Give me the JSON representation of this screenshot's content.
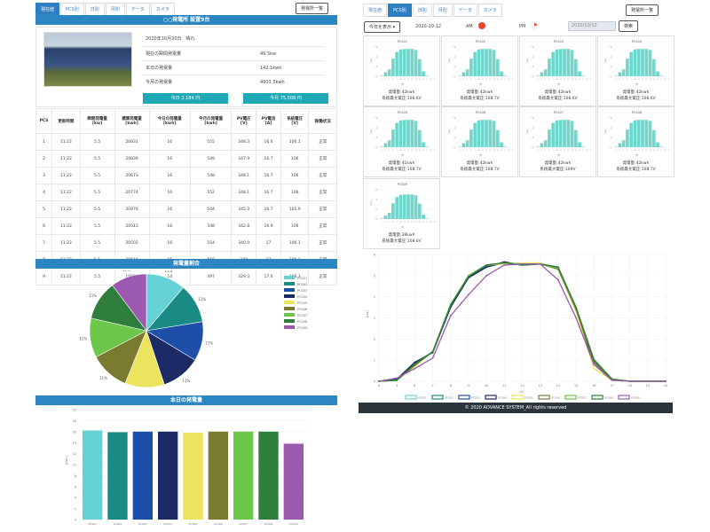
{
  "nav": {
    "tabs": [
      "現在値",
      "PCS別",
      "日別",
      "月別",
      "データ",
      "カメラ"
    ],
    "plant_list_button": "発電所一覧"
  },
  "left": {
    "title": "○○発電所 設置9台",
    "info": {
      "date_weather": "2020年10月20日　晴れ",
      "rows": [
        {
          "label": "現在の瞬間発電量",
          "value": "49.5kw"
        },
        {
          "label": "本日の発電量",
          "value": "142.1kwh"
        },
        {
          "label": "今月の発電量",
          "value": "4903.5kwh"
        }
      ],
      "today_button": "今日 2,184 円",
      "month_button": "今月 75,508 円"
    },
    "table": {
      "headers": [
        "PCS",
        "更新時間",
        "瞬間発電量\n[kw]",
        "積算発電量\n[kwh]",
        "今日の発電量\n[kwh]",
        "今月の発電量\n[kwh]",
        "PV電圧\n[V]",
        "PV電流\n[A]",
        "系統電圧\n[V]",
        "稼働状況"
      ],
      "rows": [
        [
          "1",
          "11:22",
          "5.5",
          "20831",
          "16",
          "555",
          "348.3",
          "16.6",
          "106.1",
          "正常"
        ],
        [
          "2",
          "11:22",
          "5.5",
          "20839",
          "16",
          "549",
          "347.9",
          "16.7",
          "106",
          "正常"
        ],
        [
          "3",
          "11:22",
          "5.5",
          "20673",
          "16",
          "548",
          "348.1",
          "16.7",
          "106",
          "正常"
        ],
        [
          "4",
          "11:22",
          "5.5",
          "20774",
          "16",
          "552",
          "348.1",
          "16.7",
          "106",
          "正常"
        ],
        [
          "5",
          "11:22",
          "5.5",
          "20876",
          "16",
          "544",
          "345.3",
          "16.7",
          "105.9",
          "正常"
        ],
        [
          "6",
          "11:22",
          "5.5",
          "20513",
          "16",
          "548",
          "342.8",
          "16.9",
          "106",
          "正常"
        ],
        [
          "7",
          "11:22",
          "5.5",
          "20502",
          "16",
          "554",
          "340.9",
          "17",
          "106.1",
          "正常"
        ],
        [
          "8",
          "11:22",
          "5.5",
          "20644",
          "16",
          "556",
          "340",
          "17",
          "106.1",
          "正常"
        ],
        [
          "9",
          "11:22",
          "5.5",
          "19811",
          "14",
          "497",
          "329.3",
          "17.6",
          "106.3",
          "正常"
        ]
      ]
    },
    "pie_title": "発電量割合",
    "bar_title": "本日の発電量"
  },
  "right": {
    "today_select": "今日を表示 ▾",
    "date_label": "2020-10-12",
    "am_label": "AM",
    "pm_label": "PM",
    "date_input": "2020/10/12",
    "search_button": "検索",
    "footer": "© 2020 ADVANCE SYSTEM_All rights reserved"
  },
  "colors": [
    "#66d1d6",
    "#1a8a84",
    "#1d4fa8",
    "#1c2a66",
    "#ece35e",
    "#7a7b31",
    "#6cc64a",
    "#2e7d3a",
    "#9b59b0"
  ],
  "chart_data": [
    {
      "type": "pie",
      "title": "発電量割合",
      "labels": [
        "PCS01",
        "PCS02",
        "PCS03",
        "PCS04",
        "PCS05",
        "PCS06",
        "PCS07",
        "PCS08",
        "PCS09"
      ],
      "values": [
        11,
        11,
        11,
        11,
        11,
        11,
        11,
        11,
        10
      ],
      "legend": "right"
    },
    {
      "type": "bar",
      "title": "本日の発電量",
      "categories": [
        "PCS01",
        "PCS02",
        "PCS03",
        "PCS04",
        "PCS05",
        "PCS06",
        "PCS07",
        "PCS08",
        "PCS09"
      ],
      "values": [
        16.2,
        15.9,
        16,
        16,
        15.8,
        16,
        16,
        16,
        13.8
      ],
      "ylabel": "[kwh]",
      "ylim": [
        0,
        20
      ],
      "yticks": [
        0,
        2,
        4,
        6,
        8,
        10,
        12,
        14,
        16,
        18,
        20
      ]
    },
    {
      "type": "bar",
      "title": "PCS small multiples",
      "xlabel": "[h]",
      "ylabel": "[kw]",
      "ylim": [
        0,
        6
      ],
      "yticks": [
        0,
        2,
        4,
        6
      ],
      "x": [
        5,
        6,
        7,
        8,
        9,
        10,
        11,
        12,
        13,
        14,
        15,
        16,
        17,
        18,
        19
      ],
      "cards": [
        {
          "name": "PCS01",
          "gen": "発電量:42kwh",
          "volt": "系統最大電圧:108.6V"
        },
        {
          "name": "PCS02",
          "gen": "発電量:42kwh",
          "volt": "系統最大電圧:108.7V"
        },
        {
          "name": "PCS03",
          "gen": "発電量:42kwh",
          "volt": "系統最大電圧:108.6V"
        },
        {
          "name": "PCS04",
          "gen": "発電量:42kwh",
          "volt": "系統最大電圧:108.6V"
        },
        {
          "name": "PCS05",
          "gen": "発電量:41kwh",
          "volt": "系統最大電圧:108.7V"
        },
        {
          "name": "PCS06",
          "gen": "発電量:42kwh",
          "volt": "系統最大電圧:108.7V"
        },
        {
          "name": "PCS07",
          "gen": "発電量:42kwh",
          "volt": "系統最大電圧:109V"
        },
        {
          "name": "PCS08",
          "gen": "発電量:42kwh",
          "volt": "系統最大電圧:108.7V"
        },
        {
          "name": "PCS09",
          "gen": "発電量:38kwh",
          "volt": "系統最大電圧:108.6V"
        }
      ],
      "values": [
        0.1,
        0.8,
        1.4,
        3.6,
        5,
        5.5,
        5.6,
        5.6,
        5.6,
        5.4,
        3.5,
        1,
        0.1,
        0,
        0
      ]
    },
    {
      "type": "line",
      "xlabel": "[h]",
      "ylabel": "[kw]",
      "x": [
        4,
        5,
        6,
        7,
        8,
        9,
        10,
        11,
        12,
        13,
        14,
        15,
        16,
        17,
        18,
        19,
        20
      ],
      "ylim": [
        0,
        6
      ],
      "xlim": [
        4,
        20
      ],
      "series": [
        {
          "name": "PCS01",
          "values": [
            0,
            0.05,
            0.75,
            1.4,
            3.6,
            4.9,
            5.5,
            5.6,
            5.55,
            5.6,
            5.35,
            3.5,
            1,
            0.1,
            0,
            0,
            0
          ]
        },
        {
          "name": "PCS02",
          "values": [
            0,
            0.05,
            0.8,
            1.4,
            3.6,
            4.95,
            5.45,
            5.6,
            5.55,
            5.55,
            5.4,
            3.5,
            1,
            0.1,
            0,
            0,
            0
          ]
        },
        {
          "name": "PCS03",
          "values": [
            0,
            0.1,
            0.85,
            1.4,
            3.55,
            4.9,
            5.4,
            5.6,
            5.5,
            5.55,
            5.4,
            3.4,
            0.9,
            0.1,
            0,
            0,
            0
          ]
        },
        {
          "name": "PCS04",
          "values": [
            0,
            0.1,
            0.9,
            1.35,
            3.5,
            4.9,
            5.4,
            5.65,
            5.5,
            5.55,
            5.4,
            3.4,
            0.8,
            0.05,
            0,
            0,
            0
          ]
        },
        {
          "name": "PCS05",
          "values": [
            0,
            0.05,
            0.7,
            1.4,
            3.6,
            5,
            5.5,
            5.55,
            5.6,
            5.6,
            5.3,
            3.3,
            0.6,
            0.05,
            0,
            0,
            0
          ]
        },
        {
          "name": "PCS06",
          "values": [
            0,
            0.05,
            0.75,
            1.4,
            3.6,
            5,
            5.5,
            5.6,
            5.55,
            5.55,
            5.3,
            3.4,
            0.9,
            0.1,
            0,
            0,
            0
          ]
        },
        {
          "name": "PCS07",
          "values": [
            0,
            0.05,
            0.8,
            1.4,
            3.65,
            5,
            5.5,
            5.6,
            5.55,
            5.55,
            5.35,
            3.5,
            1.05,
            0.12,
            0,
            0,
            0
          ]
        },
        {
          "name": "PCS08",
          "values": [
            0,
            0.05,
            0.8,
            1.4,
            3.6,
            4.95,
            5.5,
            5.6,
            5.5,
            5.55,
            5.4,
            3.5,
            1,
            0.1,
            0,
            0,
            0
          ]
        },
        {
          "name": "PCS09",
          "values": [
            0,
            0.15,
            0.6,
            1.1,
            3.1,
            4.1,
            5,
            5.5,
            5.55,
            5.55,
            4.8,
            3,
            0.8,
            0.05,
            0,
            0,
            0
          ]
        }
      ]
    }
  ]
}
